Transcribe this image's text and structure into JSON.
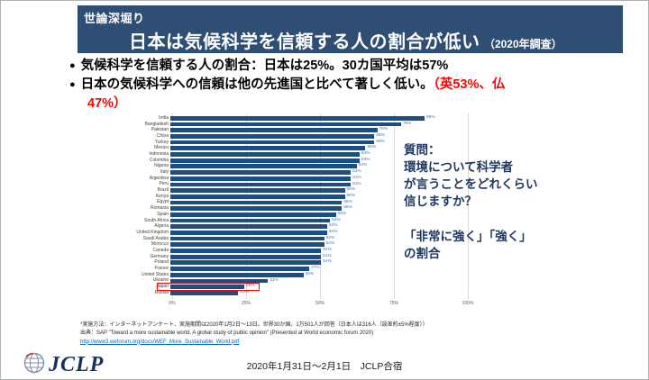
{
  "header": {
    "kicker": "世論深堀り",
    "title": "日本は気候科学を信頼する人の割合が低い",
    "title_suffix": "（2020年調査）"
  },
  "bullets": {
    "marker": "●",
    "item1": "気候科学を信頼する人の割合：日本は25%。30カ国平均は57%",
    "item2_black": "日本の気候科学への信頼は他の先進国と比べて著しく低い。",
    "item2_red_part1": "（英53%、仏",
    "item2_red_part2": "47%）"
  },
  "question": {
    "text": "質問：\n環境について科学者\nが言うことをどれくらい\n信じますか？\n\n「非常に強く」「強く」\nの割合"
  },
  "chart_data": {
    "type": "bar",
    "orientation": "horizontal",
    "categories": [
      "India",
      "Bangladesh",
      "Pakistan",
      "China",
      "Turkey",
      "Mexico",
      "Indonesia",
      "Colombia",
      "Nigeria",
      "Italy",
      "Argentina",
      "Peru",
      "Brazil",
      "Kenya",
      "Egypt",
      "Romania",
      "Spain",
      "South Africa",
      "Algeria",
      "United Kingdom",
      "Saudi Arabia",
      "Morocco",
      "Canada",
      "Germany",
      "Poland",
      "France",
      "United States",
      "Ukraine",
      "Japan",
      "Russia"
    ],
    "values": [
      86,
      78,
      70,
      69,
      69,
      66,
      64,
      64,
      63,
      61,
      61,
      61,
      59,
      59,
      58,
      58,
      56,
      54,
      53,
      53,
      52,
      52,
      51,
      51,
      51,
      47,
      45,
      33,
      25,
      23
    ],
    "value_suffix": "%",
    "x_ticks": [
      "0%",
      "25%",
      "50%",
      "75%",
      "100%"
    ],
    "xlim": [
      0,
      100
    ],
    "highlight_category": "Japan",
    "bar_color": "#1b4e82",
    "value_label_color": "#4472c4",
    "highlight_box_color": "#ff0000",
    "grid": true,
    "legend": "none"
  },
  "footnote": {
    "line1": "*実施方法：インターネットアンケート、実施期間は2020年1月2日～13日。世界30か国、1万501人が回答（日本人は316人（誤差約±5%程度））",
    "line2": "出典：SAP \"Toward a more sustainable world, A global study of public opinion\" (Presented at World economic forum 2020)",
    "url": "http://www3.weforum.org/docs/WEF_More_Sustainable_World.pdf"
  },
  "footer": {
    "logo_text": "JCLP",
    "date_note": "2020年1月31日～2月1日　JCLP合宿"
  }
}
